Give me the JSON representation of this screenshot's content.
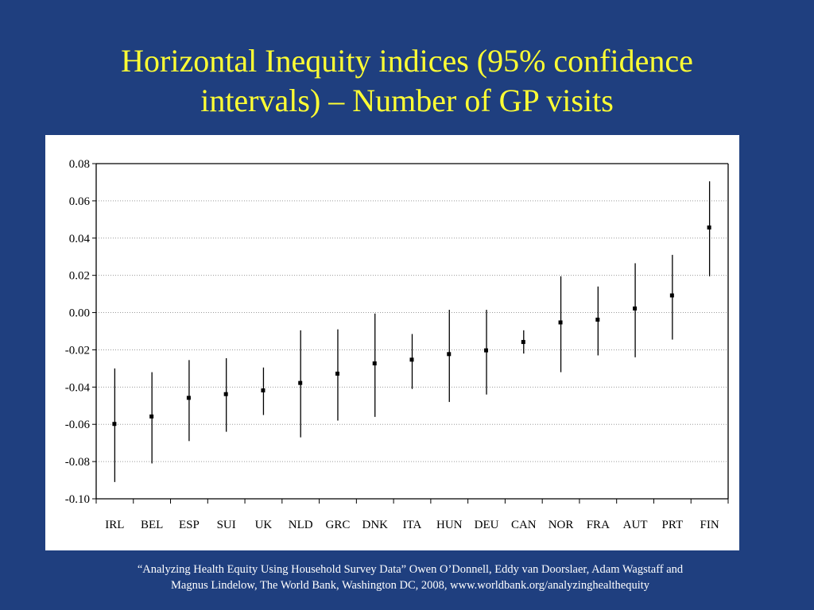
{
  "slide": {
    "title_line1": "Horizontal Inequity indices (95% confidence",
    "title_line2": "intervals) – Number of GP visits",
    "citation_line1": "“Analyzing Health Equity Using Household Survey Data” Owen O’Donnell, Eddy van Doorslaer, Adam Wagstaff and",
    "citation_line2": "Magnus Lindelow, The World Bank, Washington DC, 2008, www.worldbank.org/analyzinghealthequity"
  },
  "colors": {
    "background": "#1f3f7f",
    "title": "#ffff33",
    "marks": "#000000"
  },
  "chart_data": {
    "type": "scatter",
    "subtype": "point-with-confidence-interval",
    "title": "",
    "xlabel": "",
    "ylabel": "",
    "ylim": [
      -0.1,
      0.08
    ],
    "yticks": [
      "0.08",
      "0.06",
      "0.04",
      "0.02",
      "0.00",
      "-0.02",
      "-0.04",
      "-0.06",
      "-0.08",
      "-0.10"
    ],
    "grid": "horizontal dotted",
    "categories": [
      "IRL",
      "BEL",
      "ESP",
      "SUI",
      "UK",
      "NLD",
      "GRC",
      "DNK",
      "ITA",
      "HUN",
      "DEU",
      "CAN",
      "NOR",
      "FRA",
      "AUT",
      "PRT",
      "FIN"
    ],
    "values": [
      -0.06,
      -0.056,
      -0.046,
      -0.044,
      -0.042,
      -0.038,
      -0.033,
      -0.0275,
      -0.0255,
      -0.0225,
      -0.0205,
      -0.016,
      -0.0055,
      -0.004,
      0.002,
      0.009,
      0.0455
    ],
    "ci_lower": [
      -0.091,
      -0.081,
      -0.069,
      -0.064,
      -0.055,
      -0.067,
      -0.058,
      -0.056,
      -0.041,
      -0.048,
      -0.044,
      -0.022,
      -0.032,
      -0.023,
      -0.024,
      -0.0145,
      0.0195
    ],
    "ci_upper": [
      -0.03,
      -0.032,
      -0.0255,
      -0.0245,
      -0.0295,
      -0.0095,
      -0.009,
      -0.0005,
      -0.0115,
      0.0015,
      0.0015,
      -0.0095,
      0.0195,
      0.014,
      0.0265,
      0.031,
      0.0705
    ]
  }
}
